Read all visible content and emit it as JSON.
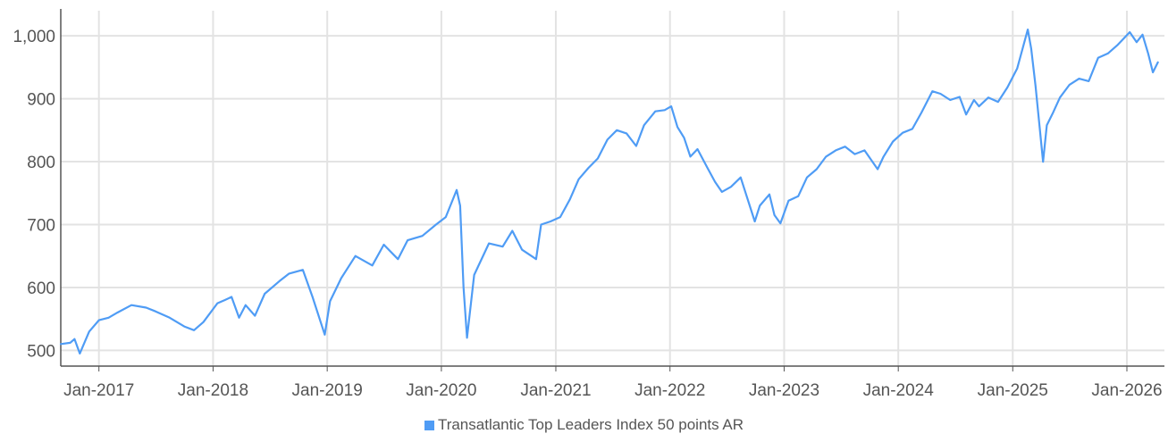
{
  "chart_data": {
    "type": "line",
    "title": "",
    "xlabel": "",
    "ylabel": "",
    "x_ticks": [
      "Jan-2017",
      "Jan-2018",
      "Jan-2019",
      "Jan-2020",
      "Jan-2021",
      "Jan-2022",
      "Jan-2023",
      "Jan-2024",
      "Jan-2025",
      "Jan-2026"
    ],
    "y_ticks": [
      "500",
      "600",
      "700",
      "800",
      "900",
      "1,000"
    ],
    "y_tick_values": [
      500,
      600,
      700,
      800,
      900,
      1000
    ],
    "xlim": [
      "2016-09-01",
      "2026-05-01"
    ],
    "ylim": [
      475,
      1040
    ],
    "grid": true,
    "legend_position": "bottom-center",
    "colors": {
      "line": "#4f9cf5",
      "grid": "#e3e3e3",
      "axis": "#555555"
    },
    "series": [
      {
        "name": "Transatlantic Top Leaders Index 50 points AR",
        "x": [
          "2016-09-01",
          "2016-10-01",
          "2016-10-15",
          "2016-11-01",
          "2016-12-01",
          "2017-01-01",
          "2017-02-01",
          "2017-03-01",
          "2017-04-15",
          "2017-06-01",
          "2017-07-01",
          "2017-08-15",
          "2017-10-01",
          "2017-11-01",
          "2017-12-01",
          "2018-01-15",
          "2018-02-08",
          "2018-03-01",
          "2018-03-25",
          "2018-04-15",
          "2018-05-15",
          "2018-06-15",
          "2018-08-01",
          "2018-09-01",
          "2018-10-15",
          "2018-11-15",
          "2018-12-24",
          "2019-01-10",
          "2019-02-15",
          "2019-04-01",
          "2019-05-25",
          "2019-07-01",
          "2019-08-15",
          "2019-09-15",
          "2019-11-01",
          "2019-12-15",
          "2020-01-15",
          "2020-02-19",
          "2020-03-01",
          "2020-03-12",
          "2020-03-23",
          "2020-04-15",
          "2020-06-01",
          "2020-07-15",
          "2020-08-15",
          "2020-09-15",
          "2020-10-15",
          "2020-10-30",
          "2020-11-15",
          "2020-12-15",
          "2021-01-15",
          "2021-02-15",
          "2021-03-15",
          "2021-04-15",
          "2021-05-15",
          "2021-06-15",
          "2021-07-15",
          "2021-08-15",
          "2021-09-15",
          "2021-10-10",
          "2021-11-15",
          "2021-12-15",
          "2022-01-05",
          "2022-01-25",
          "2022-02-15",
          "2022-03-07",
          "2022-03-30",
          "2022-05-01",
          "2022-05-25",
          "2022-06-16",
          "2022-07-15",
          "2022-08-15",
          "2022-09-29",
          "2022-10-15",
          "2022-11-15",
          "2022-12-01",
          "2022-12-20",
          "2023-01-15",
          "2023-02-15",
          "2023-03-15",
          "2023-04-15",
          "2023-05-15",
          "2023-06-15",
          "2023-07-15",
          "2023-08-15",
          "2023-09-15",
          "2023-10-27",
          "2023-11-15",
          "2023-12-15",
          "2024-01-15",
          "2024-02-15",
          "2024-03-15",
          "2024-04-19",
          "2024-05-15",
          "2024-06-15",
          "2024-07-15",
          "2024-08-05",
          "2024-08-30",
          "2024-09-15",
          "2024-10-15",
          "2024-11-15",
          "2024-12-15",
          "2025-01-15",
          "2025-02-18",
          "2025-03-01",
          "2025-03-15",
          "2025-04-08",
          "2025-04-20",
          "2025-05-10",
          "2025-06-01",
          "2025-07-01",
          "2025-08-01",
          "2025-09-01",
          "2025-10-01",
          "2025-11-01",
          "2025-12-01",
          "2026-01-10",
          "2026-02-01",
          "2026-02-20",
          "2026-03-10",
          "2026-03-25",
          "2026-04-10"
        ],
        "values": [
          510,
          512,
          518,
          495,
          530,
          548,
          552,
          560,
          572,
          568,
          562,
          552,
          538,
          532,
          545,
          575,
          580,
          585,
          552,
          572,
          555,
          590,
          610,
          622,
          628,
          585,
          525,
          578,
          615,
          650,
          635,
          668,
          645,
          675,
          682,
          700,
          712,
          755,
          730,
          600,
          520,
          620,
          670,
          665,
          690,
          660,
          650,
          645,
          700,
          705,
          712,
          740,
          772,
          790,
          805,
          835,
          850,
          845,
          825,
          858,
          880,
          882,
          888,
          855,
          838,
          808,
          820,
          790,
          768,
          752,
          760,
          775,
          705,
          730,
          748,
          715,
          702,
          738,
          745,
          775,
          788,
          808,
          818,
          824,
          812,
          818,
          788,
          808,
          832,
          846,
          852,
          878,
          912,
          908,
          898,
          903,
          875,
          898,
          888,
          902,
          895,
          918,
          948,
          1010,
          980,
          920,
          800,
          858,
          878,
          902,
          922,
          932,
          928,
          965,
          972,
          985,
          1006,
          990,
          1002,
          972,
          942,
          958
        ]
      }
    ]
  }
}
